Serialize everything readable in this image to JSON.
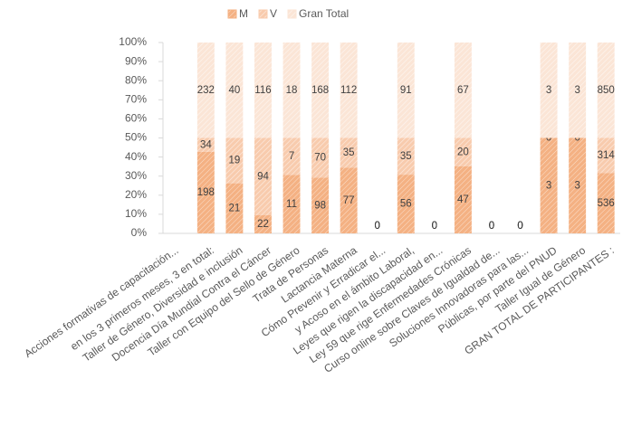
{
  "chart_data": {
    "type": "stacked_bar_100",
    "categories": [
      null,
      "en los 3 primeros meses, 3 en total:",
      "Taller de Género, Diversidad e inclusión",
      "Docencia Día Mundial Contra el Cáncer",
      "Taller con Equipo del Sello de Género",
      "Trata de Personas",
      "Lactancia Materna",
      "Cómo Prevenir y Erradicar el...",
      "y Acoso en el ámbito Laboral,",
      "Leyes que rigen la discapacidad en...",
      "Ley 59 que rige Enfermedades Crónicas",
      "Curso online sobre Claves de Igualdad de...",
      "Soluciones Innovadoras para las...",
      "Públicas, por parte del PNUD",
      "Taller Igual de Género",
      "GRAN TOTAL DE PARTICIPANTES :"
    ],
    "axis_title_note": "Acciones formativas de capacitación...",
    "series": [
      {
        "name": "M",
        "color": "#f4b183",
        "values": [
          null,
          198,
          21,
          22,
          11,
          98,
          77,
          0,
          56,
          0,
          47,
          0,
          0,
          3,
          3,
          536
        ]
      },
      {
        "name": "V",
        "color": "#f8cbad",
        "values": [
          null,
          34,
          19,
          94,
          7,
          70,
          35,
          0,
          35,
          0,
          20,
          0,
          0,
          0,
          0,
          314
        ]
      },
      {
        "name": "Gran Total",
        "color": "#fbe5d6",
        "values": [
          null,
          232,
          40,
          116,
          18,
          168,
          112,
          0,
          91,
          0,
          67,
          0,
          0,
          3,
          3,
          850
        ]
      }
    ],
    "ylim": [
      0,
      100
    ],
    "yticks": [
      {
        "value": 0,
        "label": "0%"
      },
      {
        "value": 10,
        "label": "10%"
      },
      {
        "value": 20,
        "label": "20%"
      },
      {
        "value": 30,
        "label": "30%"
      },
      {
        "value": 40,
        "label": "40%"
      },
      {
        "value": 50,
        "label": "50%"
      },
      {
        "value": 60,
        "label": "60%"
      },
      {
        "value": 70,
        "label": "70%"
      },
      {
        "value": 80,
        "label": "80%"
      },
      {
        "value": 90,
        "label": "90%"
      },
      {
        "value": 100,
        "label": "100%"
      }
    ],
    "grid": false,
    "legend": "top"
  }
}
